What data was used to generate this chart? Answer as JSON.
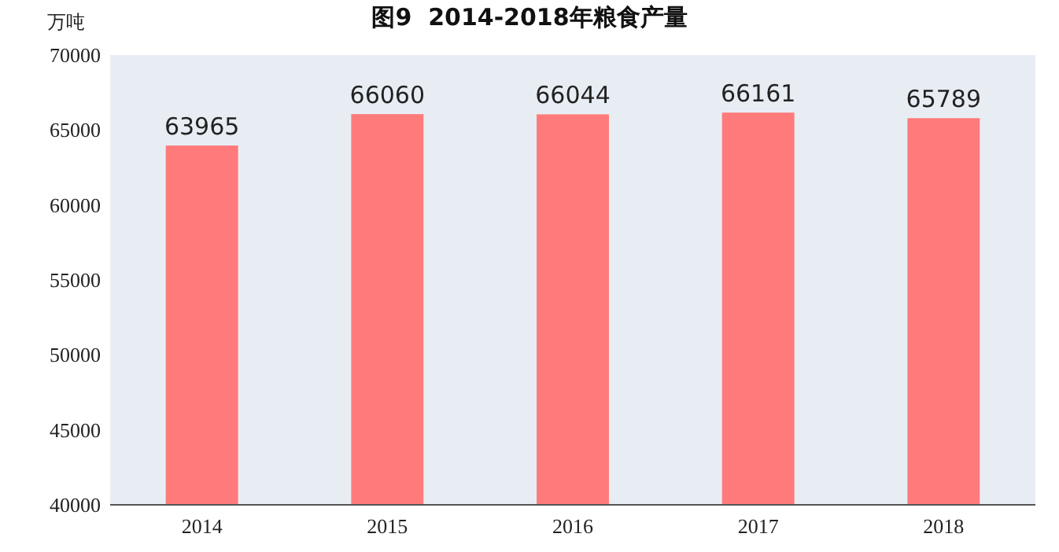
{
  "chart_data": {
    "type": "bar",
    "title": "图9  2014-2018年粮食产量",
    "ylabel": "万吨",
    "categories": [
      "2014",
      "2015",
      "2016",
      "2017",
      "2018"
    ],
    "values": [
      63965,
      66060,
      66044,
      66161,
      65789
    ],
    "color": "#ff7b7b",
    "ylim": [
      40000,
      70000
    ],
    "yticks": [
      40000,
      45000,
      50000,
      55000,
      60000,
      65000,
      70000
    ],
    "data_labels": true,
    "grid": false
  }
}
